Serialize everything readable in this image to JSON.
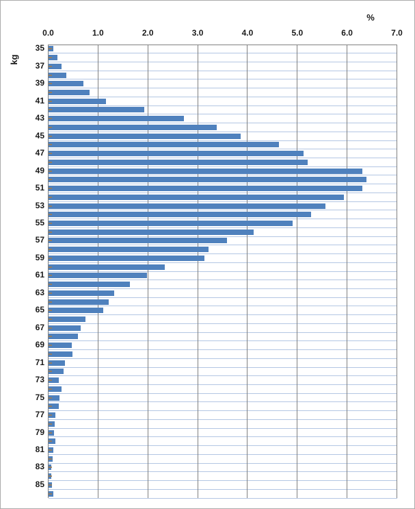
{
  "window": {
    "background": "#FFFFFF",
    "border_color": "#ABABAB"
  },
  "chart_data": {
    "type": "bar",
    "orientation": "horizontal",
    "title": "",
    "xlabel": "%",
    "ylabel": "kg",
    "xlim": [
      0.0,
      7.0
    ],
    "x_tick_interval": 1.0,
    "x_tick_labels": [
      "0.0",
      "1.0",
      "2.0",
      "3.0",
      "4.0",
      "5.0",
      "6.0",
      "7.0"
    ],
    "y_tick_labels": [
      "35",
      "37",
      "39",
      "41",
      "43",
      "45",
      "47",
      "49",
      "51",
      "53",
      "55",
      "57",
      "59",
      "61",
      "63",
      "65",
      "67",
      "69",
      "71",
      "73",
      "75",
      "77",
      "79",
      "81",
      "83",
      "85"
    ],
    "categories": [
      35,
      36,
      37,
      38,
      39,
      40,
      41,
      42,
      43,
      44,
      45,
      46,
      47,
      48,
      49,
      50,
      51,
      52,
      53,
      54,
      55,
      56,
      57,
      58,
      59,
      60,
      61,
      62,
      63,
      64,
      65,
      66,
      67,
      68,
      69,
      70,
      71,
      72,
      73,
      74,
      75,
      76,
      77,
      78,
      79,
      80,
      81,
      82,
      83,
      84,
      85,
      86
    ],
    "values": [
      0.1,
      0.18,
      0.27,
      0.37,
      0.71,
      0.83,
      1.16,
      1.93,
      2.72,
      3.38,
      3.87,
      4.63,
      5.13,
      5.21,
      6.3,
      6.39,
      6.3,
      5.93,
      5.56,
      5.28,
      4.91,
      4.12,
      3.59,
      3.22,
      3.14,
      2.34,
      1.99,
      1.64,
      1.33,
      1.21,
      1.11,
      0.75,
      0.65,
      0.6,
      0.48,
      0.49,
      0.33,
      0.31,
      0.21,
      0.27,
      0.22,
      0.21,
      0.14,
      0.13,
      0.11,
      0.14,
      0.1,
      0.09,
      0.06,
      0.06,
      0.07,
      0.1
    ],
    "legend": "none",
    "grid": "on",
    "colors": {
      "bar": "#4F81BD",
      "horizontal_gridline": "#B3C6E3",
      "vertical_gridline": "#808080",
      "axis_line": "#808080",
      "category_tick": "#9C7B52",
      "text": "#1a1a1a"
    }
  }
}
